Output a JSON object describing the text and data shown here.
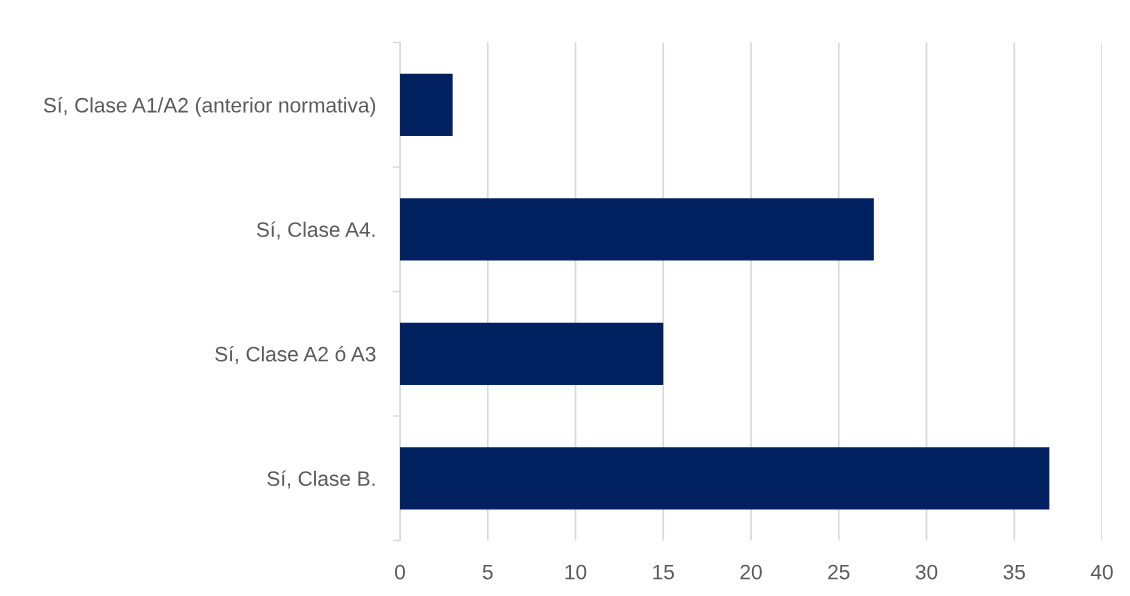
{
  "chart_data": {
    "type": "bar",
    "orientation": "horizontal",
    "categories": [
      "Sí, Clase A1/A2 (anterior normativa)",
      "Sí, Clase A4.",
      "Sí, Clase A2 ó A3",
      "Sí, Clase B."
    ],
    "values": [
      3,
      27,
      15,
      37
    ],
    "color": "#002060",
    "xlim": [
      0,
      40
    ],
    "xticks": [
      0,
      5,
      10,
      15,
      20,
      25,
      30,
      35,
      40
    ],
    "grid": "x"
  }
}
